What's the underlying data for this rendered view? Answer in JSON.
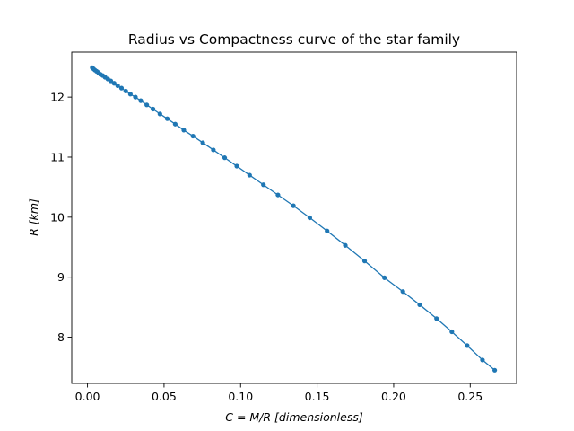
{
  "chart_data": {
    "type": "line",
    "title": "Radius vs Compactness curve of the star family",
    "xlabel": "C = M/R [dimensionless]",
    "ylabel": "R [km]",
    "xlim": [
      -0.0103,
      0.2803
    ],
    "ylim": [
      7.23,
      12.75
    ],
    "xticks": [
      0.0,
      0.05,
      0.1,
      0.15,
      0.2,
      0.25
    ],
    "xtick_labels": [
      "0.00",
      "0.05",
      "0.10",
      "0.15",
      "0.20",
      "0.25"
    ],
    "yticks": [
      8,
      9,
      10,
      11,
      12
    ],
    "ytick_labels": [
      "8",
      "9",
      "10",
      "11",
      "12"
    ],
    "grid": false,
    "legend": "none",
    "color": "#1f77b4",
    "series": [
      {
        "marker": "circle",
        "x": [
          0.0031,
          0.0039,
          0.0048,
          0.0059,
          0.0071,
          0.0084,
          0.0099,
          0.0115,
          0.0133,
          0.0152,
          0.0174,
          0.0197,
          0.0222,
          0.025,
          0.028,
          0.0313,
          0.0348,
          0.0387,
          0.0428,
          0.0473,
          0.0521,
          0.0573,
          0.0629,
          0.0689,
          0.0753,
          0.0822,
          0.0896,
          0.0975,
          0.1059,
          0.1149,
          0.1244,
          0.1345,
          0.1452,
          0.1565,
          0.1684,
          0.181,
          0.194,
          0.206,
          0.217,
          0.228,
          0.238,
          0.248,
          0.258,
          0.266
        ],
        "y": [
          12.49,
          12.47,
          12.45,
          12.43,
          12.41,
          12.38,
          12.36,
          12.33,
          12.3,
          12.27,
          12.23,
          12.19,
          12.15,
          12.1,
          12.05,
          12.0,
          11.94,
          11.87,
          11.8,
          11.72,
          11.64,
          11.55,
          11.45,
          11.35,
          11.24,
          11.12,
          10.99,
          10.85,
          10.7,
          10.54,
          10.37,
          10.19,
          9.99,
          9.77,
          9.53,
          9.27,
          8.99,
          8.76,
          8.54,
          8.31,
          8.09,
          7.86,
          7.62,
          7.45
        ]
      }
    ]
  }
}
